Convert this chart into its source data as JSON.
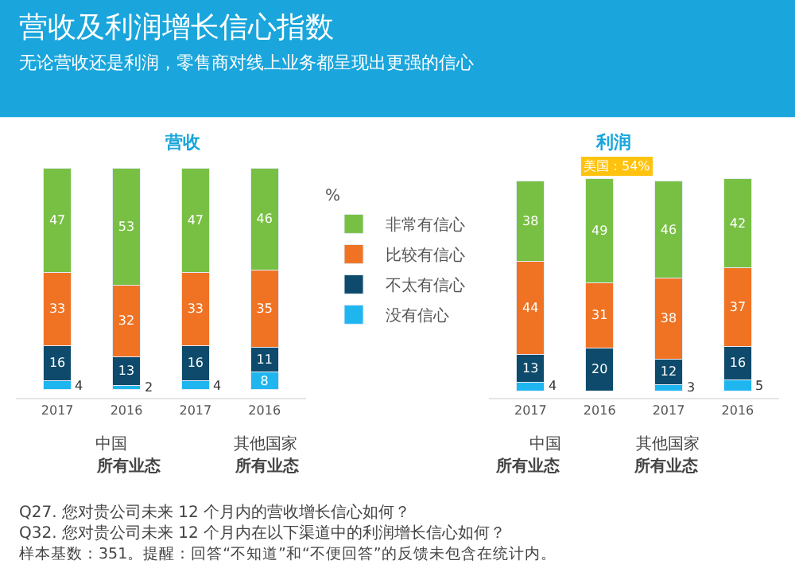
{
  "chart_data": [
    {
      "type": "bar",
      "title": "营收",
      "stacked": true,
      "data_labels": true,
      "legend": "right",
      "legend_title": "%",
      "categories": [
        "2017",
        "2016",
        "2017",
        "2016"
      ],
      "series": [
        {
          "name": "没有信心",
          "color": "#1fb6f0",
          "values": [
            4,
            2,
            4,
            8
          ]
        },
        {
          "name": "不太有信心",
          "color": "#0d4a6b",
          "values": [
            16,
            13,
            16,
            11
          ]
        },
        {
          "name": "比较有信心",
          "color": "#f07324",
          "values": [
            33,
            32,
            33,
            35
          ]
        },
        {
          "name": "非常有信心",
          "color": "#78c043",
          "values": [
            47,
            53,
            47,
            46
          ]
        }
      ],
      "annotations": [
        "营收及利润增长信心指数",
        "无论营收还是利润，零售商对线上业务都呈现出更强的信心",
        "中国",
        "所有业态",
        "其他国家",
        "所有业态",
        "Q27. 您对贵公司未来 12 个月内的营收增长信心如何？",
        "Q32. 您对贵公司未来 12 个月内在以下渠道中的利润增长信心如何？",
        "样本基数：351。提醒：回答“不知道”和“不便回答”的反馈未包含在统计内。"
      ]
    },
    {
      "type": "bar",
      "title": "利润",
      "stacked": true,
      "data_labels": true,
      "categories": [
        "2017",
        "2016",
        "2017",
        "2016"
      ],
      "series": [
        {
          "color": "#1fb6f0",
          "values": [
            4,
            null,
            3,
            5
          ]
        },
        {
          "color": "#0d4a6b",
          "values": [
            13,
            20,
            12,
            16
          ]
        },
        {
          "color": "#f07324",
          "values": [
            44,
            31,
            38,
            37
          ]
        },
        {
          "color": "#78c043",
          "values": [
            38,
            49,
            46,
            42
          ]
        }
      ],
      "annotations": [
        "美国：54%",
        "中国",
        "所有业态",
        "其他国家",
        "所有业态"
      ]
    }
  ]
}
